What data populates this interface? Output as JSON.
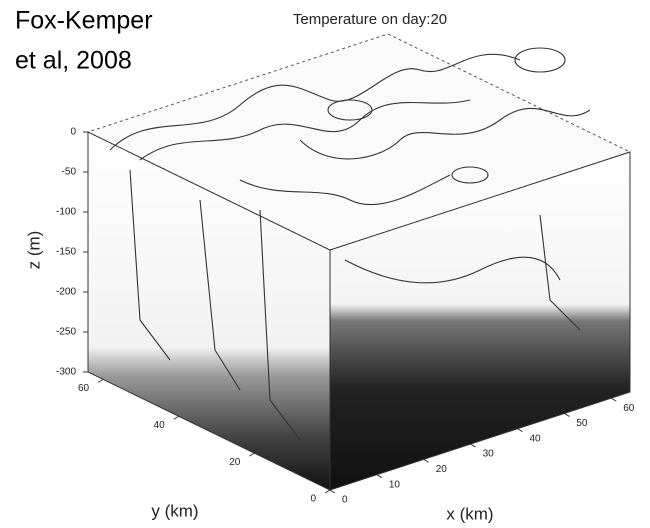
{
  "chart_data": {
    "type": "contour3d",
    "title": "Temperature on day:20",
    "annotation": [
      "Fox-Kemper",
      "et al, 2008"
    ],
    "xlabel": "x (km)",
    "ylabel": "y (km)",
    "zlabel": "z (m)",
    "xlim": [
      0,
      64
    ],
    "ylim": [
      0,
      64
    ],
    "zlim": [
      -300,
      0
    ],
    "xticks": [
      0,
      10,
      20,
      30,
      40,
      50,
      60
    ],
    "yticks": [
      0,
      20,
      40,
      60
    ],
    "zticks": [
      0,
      -50,
      -100,
      -150,
      -200,
      -250,
      -300
    ]
  }
}
